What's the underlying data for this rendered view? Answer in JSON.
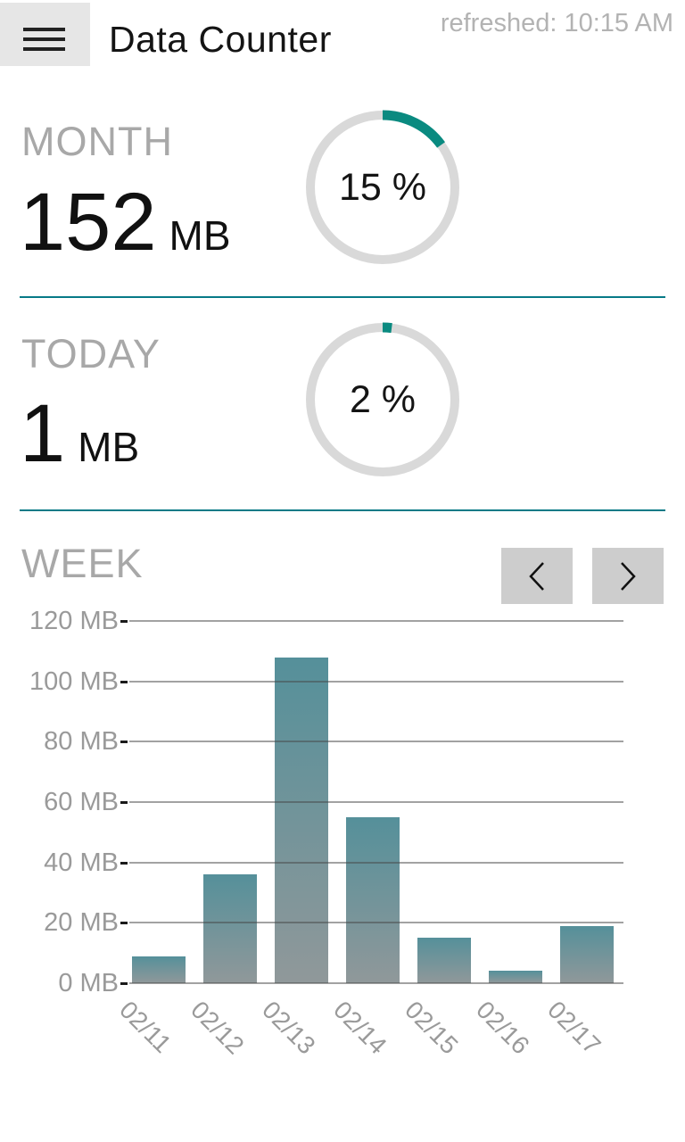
{
  "header": {
    "title": "Data Counter",
    "refreshed": "refreshed: 10:15 AM"
  },
  "sections": {
    "month": {
      "label": "MONTH",
      "value": "152",
      "unit": "MB",
      "percent": 15,
      "percent_label": "15 %"
    },
    "today": {
      "label": "TODAY",
      "value": "1",
      "unit": "MB",
      "percent": 2,
      "percent_label": "2 %"
    },
    "week": {
      "label": "WEEK"
    }
  },
  "icons": {
    "menu": "hamburger-icon",
    "prev": "chevron-left-icon",
    "next": "chevron-right-icon"
  },
  "colors": {
    "accent": "#0a8a80",
    "divider": "#077a87",
    "ring_track": "#d9d9d9",
    "bar_top": "#55909a",
    "bar_bottom": "#90989a",
    "gridline": "rgba(70,70,70,0.5)",
    "text_muted": "#a8a8a8",
    "text_dark": "#111111",
    "button_bg": "#cdcdcd",
    "header_button_bg": "#e6e6e6"
  },
  "chart_data": {
    "type": "bar",
    "title": "WEEK",
    "categories": [
      "02/11",
      "02/12",
      "02/13",
      "02/14",
      "02/15",
      "02/16",
      "02/17"
    ],
    "values": [
      9,
      36,
      108,
      55,
      15,
      4,
      19
    ],
    "unit": "MB",
    "xlabel": "",
    "ylabel": "",
    "ylim": [
      0,
      120
    ],
    "ytick_step": 20,
    "ytick_labels": [
      "120 MB",
      "100 MB",
      "80 MB",
      "60 MB",
      "40 MB",
      "20 MB",
      "0 MB"
    ],
    "grid": true,
    "legend": false
  }
}
